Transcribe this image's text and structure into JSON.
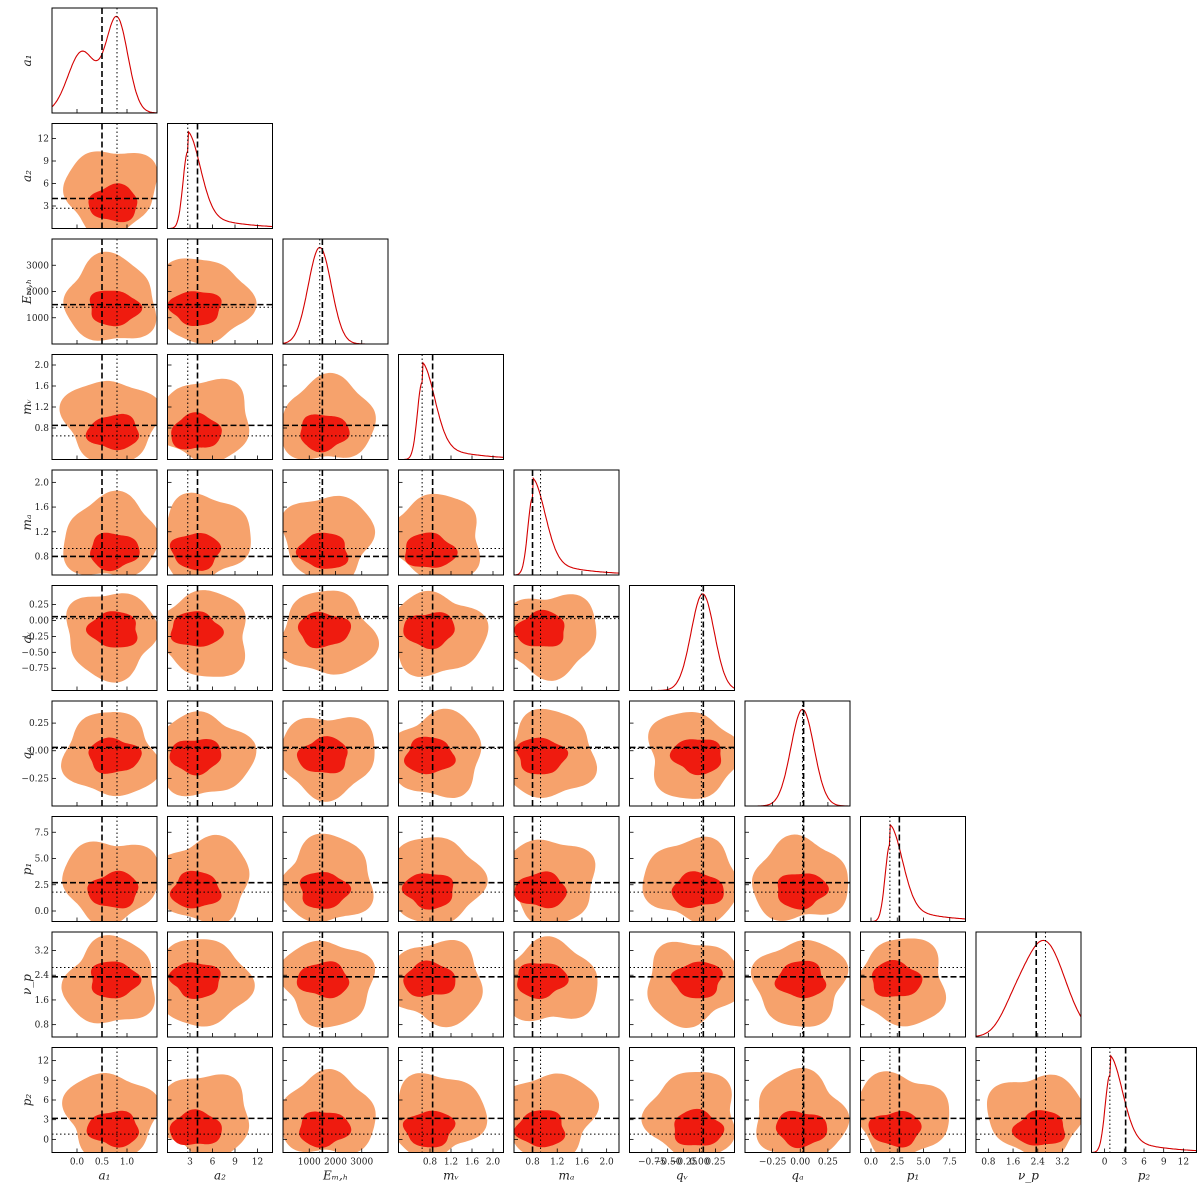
{
  "chart_data": {
    "type": "corner",
    "title": "",
    "colors": {
      "outer_contour": "#f6a26c",
      "inner_contour": "#ef1b0f",
      "marginal_line": "#d40000",
      "reference_lines": "#000000"
    },
    "grid": false,
    "legend": "none",
    "parameters": [
      {
        "label": "a₁",
        "range": [
          -0.5,
          1.6
        ],
        "ticks": [
          {
            "v": 0.0,
            "t": "0.0"
          },
          {
            "v": 0.5,
            "t": "0.5"
          },
          {
            "v": 1.0,
            "t": "1.0"
          }
        ],
        "dashed": 0.5,
        "dotted": 0.8,
        "mode": 0.8,
        "shape": "bimodal"
      },
      {
        "label": "a₂",
        "range": [
          0,
          14
        ],
        "ticks": [
          {
            "v": 3,
            "t": "3"
          },
          {
            "v": 6,
            "t": "6"
          },
          {
            "v": 9,
            "t": "9"
          },
          {
            "v": 12,
            "t": "12"
          }
        ],
        "dashed": 4.0,
        "dotted": 2.7,
        "mode": 2.7,
        "shape": "skewed"
      },
      {
        "label": "Eₘ,ₕ",
        "range": [
          0,
          4000
        ],
        "ticks": [
          {
            "v": 1000,
            "t": "1000"
          },
          {
            "v": 2000,
            "t": "2000"
          },
          {
            "v": 3000,
            "t": "3000"
          }
        ],
        "dashed": 1500,
        "dotted": 1400,
        "mode": 1400,
        "shape": "gaussian"
      },
      {
        "label": "mᵥ",
        "range": [
          0.2,
          2.2
        ],
        "ticks": [
          {
            "v": 0.8,
            "t": "0.8"
          },
          {
            "v": 1.2,
            "t": "1.2"
          },
          {
            "v": 1.6,
            "t": "1.6"
          },
          {
            "v": 2.0,
            "t": "2.0"
          }
        ],
        "dashed": 0.85,
        "dotted": 0.65,
        "mode": 0.65,
        "shape": "skewed"
      },
      {
        "label": "mₐ",
        "range": [
          0.5,
          2.2
        ],
        "ticks": [
          {
            "v": 0.8,
            "t": "0.8"
          },
          {
            "v": 1.2,
            "t": "1.2"
          },
          {
            "v": 1.6,
            "t": "1.6"
          },
          {
            "v": 2.0,
            "t": "2.0"
          }
        ],
        "dashed": 0.8,
        "dotted": 0.93,
        "mode": 0.8,
        "shape": "skewed"
      },
      {
        "label": "qᵥ",
        "range": [
          -1.1,
          0.55
        ],
        "ticks": [
          {
            "v": -0.75,
            "t": "−0.75"
          },
          {
            "v": -0.5,
            "t": "−0.50"
          },
          {
            "v": -0.25,
            "t": "−0.25"
          },
          {
            "v": 0.0,
            "t": "0.00"
          },
          {
            "v": 0.25,
            "t": "0.25"
          }
        ],
        "dashed": 0.06,
        "dotted": 0.03,
        "mode": 0.05,
        "shape": "gaussian"
      },
      {
        "label": "qₐ",
        "range": [
          -0.5,
          0.45
        ],
        "ticks": [
          {
            "v": -0.25,
            "t": "−0.25"
          },
          {
            "v": 0.0,
            "t": "0.00"
          },
          {
            "v": 0.25,
            "t": "0.25"
          }
        ],
        "dashed": 0.03,
        "dotted": 0.02,
        "mode": 0.02,
        "shape": "gaussian"
      },
      {
        "label": "p₁",
        "range": [
          -1,
          9
        ],
        "ticks": [
          {
            "v": 0.0,
            "t": "0.0"
          },
          {
            "v": 2.5,
            "t": "2.5"
          },
          {
            "v": 5.0,
            "t": "5.0"
          },
          {
            "v": 7.5,
            "t": "7.5"
          }
        ],
        "dashed": 2.7,
        "dotted": 1.8,
        "mode": 1.8,
        "shape": "skewed"
      },
      {
        "label": "ν_p",
        "range": [
          0.4,
          3.8
        ],
        "ticks": [
          {
            "v": 0.8,
            "t": "0.8"
          },
          {
            "v": 1.6,
            "t": "1.6"
          },
          {
            "v": 2.4,
            "t": "2.4"
          },
          {
            "v": 3.2,
            "t": "3.2"
          }
        ],
        "dashed": 2.35,
        "dotted": 2.65,
        "mode": 2.6,
        "shape": "broad"
      },
      {
        "label": "p₂",
        "range": [
          -2,
          14
        ],
        "ticks": [
          {
            "v": 0,
            "t": "0"
          },
          {
            "v": 3,
            "t": "3"
          },
          {
            "v": 6,
            "t": "6"
          },
          {
            "v": 9,
            "t": "9"
          },
          {
            "v": 12,
            "t": "12"
          }
        ],
        "dashed": 3.2,
        "dotted": 0.8,
        "mode": 0.8,
        "shape": "skewed"
      }
    ]
  }
}
